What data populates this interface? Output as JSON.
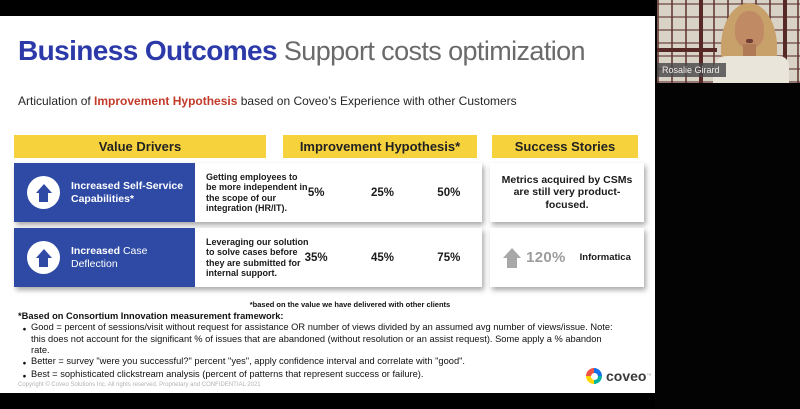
{
  "webcam": {
    "participant_name": "Rosalie Girard"
  },
  "slide": {
    "title_primary": "Business Outcomes",
    "title_secondary": " Support costs optimization",
    "subtitle_prefix": "Articulation of ",
    "subtitle_highlight": "Improvement Hypothesis",
    "subtitle_suffix": " based on Coveo’s Experience with other Customers",
    "columns": {
      "value_drivers": "Value Drivers",
      "improvement_hypothesis": "Improvement Hypothesis*",
      "success_stories": "Success Stories"
    },
    "rows": [
      {
        "driver_bold": "Increased Self-Service Capabilities*",
        "driver_rest": "",
        "description": "Getting employees to be more independent in the scope of our integration (HR/IT).",
        "values": [
          "5%",
          "25%",
          "50%"
        ],
        "success_text": "Metrics acquired by CSMs are still very product-focused."
      },
      {
        "driver_bold": "Increased",
        "driver_rest": " Case Deflection",
        "description": "Leveraging our solution to solve cases before they are submitted for internal support.",
        "values": [
          "35%",
          "45%",
          "75%"
        ],
        "success_metric": "120%",
        "success_client": "Informatica"
      }
    ],
    "footnote": "*based on the value we have delivered with  other clients",
    "framework": {
      "header": "*Based on Consortium Innovation measurement framework:",
      "bullets": [
        "Good = percent of sessions/visit without request for assistance OR number of views divided by an assumed avg number of views/issue. Note: this does not account for the significant % of issues that are abandoned (without resolution or an assist request). Some apply a % abandon rate.",
        "Better = survey \"were you successful?\" percent \"yes\", apply confidence interval and correlate with \"good\".",
        "Best = sophisticated clickstream analysis (percent of patterns that represent success or failure)."
      ]
    },
    "copyright": "Copyright © Coveo Solutions Inc. All rights reserved. Proprietary and CONFIDENTIAL 2021",
    "logo": {
      "text": "coveo",
      "tm": "™"
    }
  },
  "colors": {
    "title_blue": "#2b3aa8",
    "driver_box_blue": "#2e4aa5",
    "header_yellow": "#f6d33c",
    "highlight_red": "#c23b2a",
    "metric_gray": "#9c9c9c"
  }
}
